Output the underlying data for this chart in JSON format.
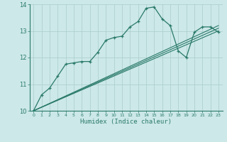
{
  "xlabel": "Humidex (Indice chaleur)",
  "xlim": [
    -0.5,
    23.5
  ],
  "ylim": [
    10,
    14
  ],
  "xticks": [
    0,
    1,
    2,
    3,
    4,
    5,
    6,
    7,
    8,
    9,
    10,
    11,
    12,
    13,
    14,
    15,
    16,
    17,
    18,
    19,
    20,
    21,
    22,
    23
  ],
  "yticks": [
    10,
    11,
    12,
    13,
    14
  ],
  "background_color": "#cce8e8",
  "grid_color": "#aacccc",
  "line_color": "#2a7a6a",
  "lines": [
    {
      "x": [
        0,
        1,
        2,
        3,
        4,
        5,
        6,
        7,
        8,
        9,
        10,
        11,
        12,
        13,
        14,
        15,
        16,
        17,
        18,
        19,
        20,
        21,
        22,
        23
      ],
      "y": [
        10.0,
        10.6,
        10.85,
        11.3,
        11.75,
        11.8,
        11.85,
        11.85,
        12.2,
        12.65,
        12.75,
        12.8,
        13.15,
        13.35,
        13.85,
        13.9,
        13.45,
        13.2,
        12.25,
        12.0,
        12.95,
        13.15,
        13.15,
        12.95
      ],
      "marker": true
    },
    {
      "x": [
        0,
        23
      ],
      "y": [
        10.0,
        13.0
      ],
      "marker": false
    },
    {
      "x": [
        0,
        23
      ],
      "y": [
        10.0,
        13.1
      ],
      "marker": false
    },
    {
      "x": [
        0,
        23
      ],
      "y": [
        10.0,
        13.2
      ],
      "marker": false
    }
  ]
}
